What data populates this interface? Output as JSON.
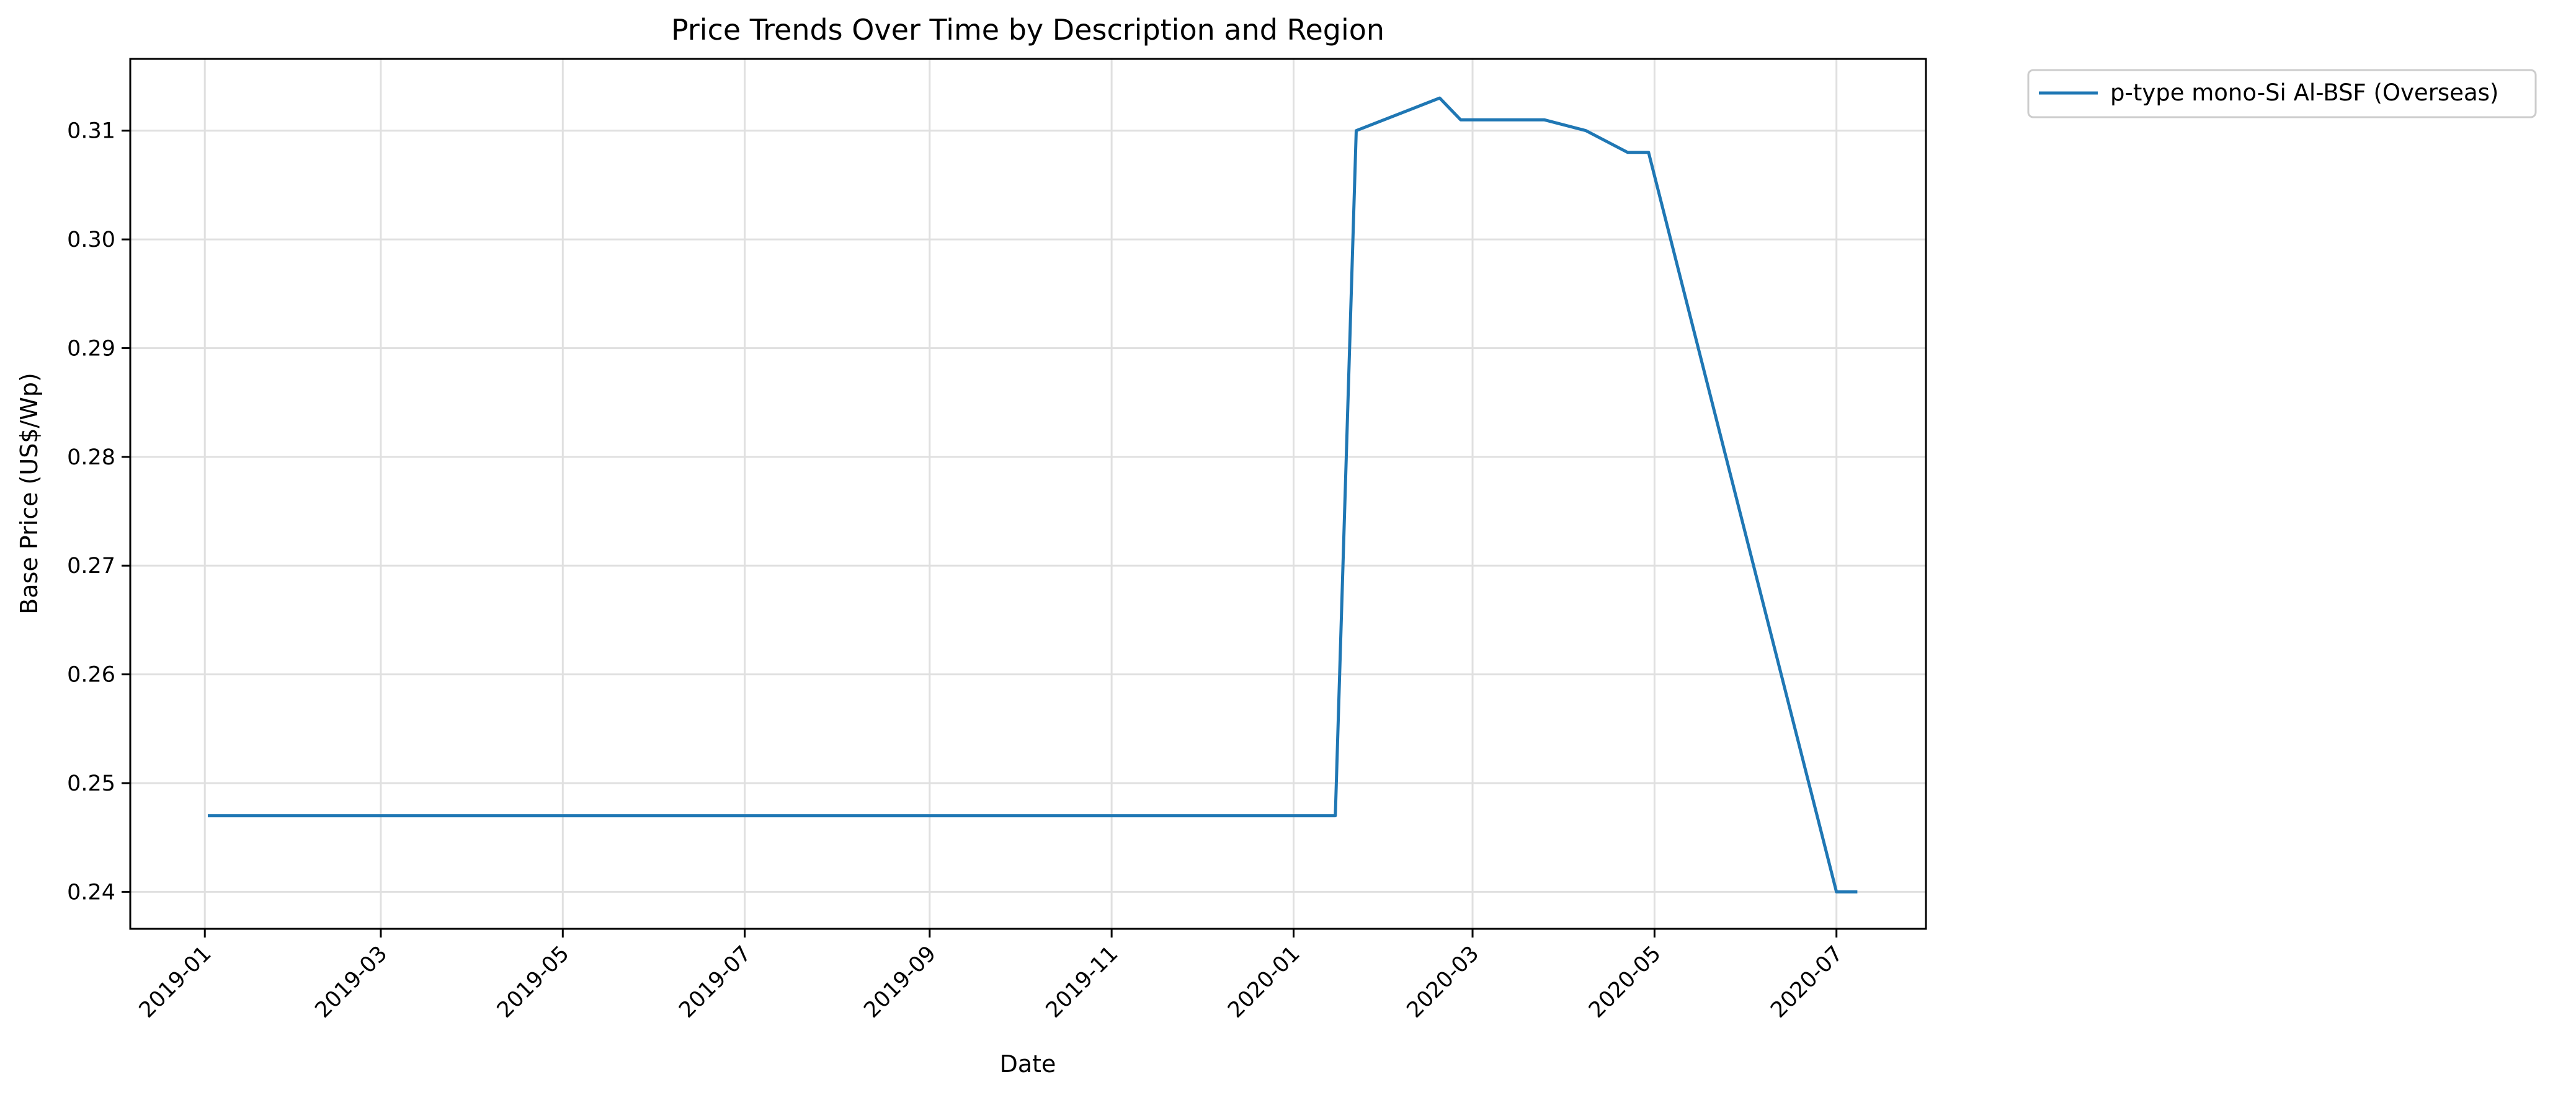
{
  "chart_data": {
    "type": "line",
    "title": "Price Trends Over Time by Description and Region",
    "xlabel": "Date",
    "ylabel": "Base Price (US$/Wp)",
    "x_ticks": [
      "2019-01",
      "2019-03",
      "2019-05",
      "2019-07",
      "2019-09",
      "2019-11",
      "2020-01",
      "2020-03",
      "2020-05",
      "2020-07"
    ],
    "y_ticks": [
      "0.24",
      "0.25",
      "0.26",
      "0.27",
      "0.28",
      "0.29",
      "0.30",
      "0.31"
    ],
    "xlim": [
      "2018-12-07",
      "2020-07-31"
    ],
    "ylim": [
      0.2366,
      0.3166
    ],
    "grid": true,
    "legend_position": "outside-top-right",
    "series": [
      {
        "name": "p-type mono-Si Al-BSF (Overseas)",
        "color": "#1f77b4",
        "points": [
          {
            "x": "2019-01-02",
            "y": 0.247
          },
          {
            "x": "2020-01-15",
            "y": 0.247
          },
          {
            "x": "2020-01-22",
            "y": 0.31
          },
          {
            "x": "2020-02-19",
            "y": 0.313
          },
          {
            "x": "2020-02-26",
            "y": 0.311
          },
          {
            "x": "2020-03-25",
            "y": 0.311
          },
          {
            "x": "2020-04-08",
            "y": 0.31
          },
          {
            "x": "2020-04-22",
            "y": 0.308
          },
          {
            "x": "2020-04-29",
            "y": 0.308
          },
          {
            "x": "2020-07-01",
            "y": 0.24
          },
          {
            "x": "2020-07-08",
            "y": 0.24
          }
        ]
      }
    ]
  }
}
